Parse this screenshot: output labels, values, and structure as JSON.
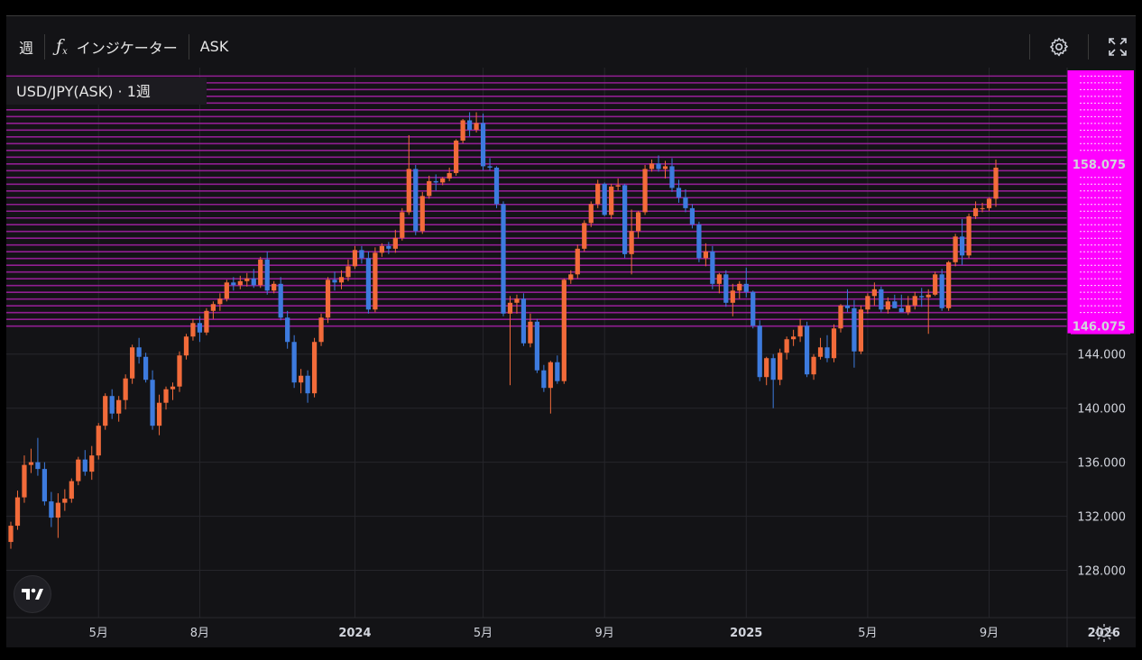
{
  "toolbar": {
    "interval": "週",
    "indicators_label": "インジケーター",
    "price_source": "ASK"
  },
  "legend": {
    "symbol": "USD/JPY(ASK)",
    "interval": "1週"
  },
  "colors": {
    "background": "#131316",
    "up": "#f26b3a",
    "down": "#3d7bde",
    "levels": "#a020a0",
    "level_label_bg": "#ff00ff"
  },
  "price_labels": {
    "level_top": "158.075",
    "level_bottom": "146.075"
  },
  "chart_data": {
    "type": "candlestick",
    "y_ticks": [
      "144.000",
      "140.000",
      "136.000",
      "132.000",
      "128.000"
    ],
    "x_ticks": [
      "5月",
      "8月",
      "2024",
      "5月",
      "9月",
      "2025",
      "5月",
      "9月",
      "2026"
    ],
    "ylim": [
      124.5,
      165.0
    ],
    "levels": {
      "from": 146.075,
      "to": 164.6,
      "step": 0.5,
      "highlighted": [
        158.075,
        146.075
      ]
    },
    "candles": [
      [
        130.1,
        131.6,
        129.6,
        131.3
      ],
      [
        131.3,
        133.9,
        131.0,
        133.4
      ],
      [
        133.4,
        136.5,
        133.0,
        135.8
      ],
      [
        135.8,
        137.0,
        135.2,
        136.0
      ],
      [
        136.0,
        137.8,
        135.0,
        135.5
      ],
      [
        135.5,
        136.0,
        132.8,
        133.1
      ],
      [
        133.1,
        133.8,
        131.2,
        131.9
      ],
      [
        131.9,
        133.7,
        130.4,
        133.0
      ],
      [
        133.0,
        134.0,
        132.4,
        133.3
      ],
      [
        133.3,
        134.8,
        133.0,
        134.6
      ],
      [
        134.6,
        136.4,
        134.3,
        136.2
      ],
      [
        136.2,
        136.9,
        135.0,
        135.3
      ],
      [
        135.3,
        137.2,
        134.7,
        136.5
      ],
      [
        136.5,
        138.9,
        136.2,
        138.7
      ],
      [
        138.7,
        141.1,
        138.4,
        140.9
      ],
      [
        140.9,
        141.4,
        139.2,
        139.6
      ],
      [
        139.6,
        140.9,
        139.0,
        140.6
      ],
      [
        140.6,
        142.5,
        139.9,
        142.2
      ],
      [
        142.2,
        144.7,
        141.8,
        144.5
      ],
      [
        144.5,
        145.2,
        143.3,
        143.8
      ],
      [
        143.8,
        144.1,
        141.9,
        142.1
      ],
      [
        142.1,
        142.8,
        138.4,
        138.7
      ],
      [
        138.7,
        141.0,
        138.0,
        140.4
      ],
      [
        140.4,
        141.6,
        139.9,
        141.4
      ],
      [
        141.4,
        141.9,
        140.6,
        141.6
      ],
      [
        141.6,
        144.2,
        141.2,
        143.9
      ],
      [
        143.9,
        145.5,
        143.6,
        145.3
      ],
      [
        145.3,
        146.6,
        145.0,
        146.3
      ],
      [
        146.3,
        146.8,
        144.9,
        145.6
      ],
      [
        145.6,
        147.4,
        145.4,
        147.2
      ],
      [
        147.2,
        147.9,
        146.6,
        147.7
      ],
      [
        147.7,
        148.5,
        147.2,
        148.1
      ],
      [
        148.1,
        149.5,
        147.9,
        149.3
      ],
      [
        149.3,
        149.7,
        148.7,
        149.1
      ],
      [
        149.1,
        149.8,
        148.8,
        149.4
      ],
      [
        149.4,
        150.0,
        149.0,
        149.6
      ],
      [
        149.6,
        150.3,
        148.9,
        149.1
      ],
      [
        149.1,
        151.2,
        148.9,
        151.0
      ],
      [
        151.0,
        151.6,
        148.4,
        148.7
      ],
      [
        148.7,
        149.4,
        148.5,
        149.2
      ],
      [
        149.2,
        149.7,
        146.5,
        146.7
      ],
      [
        146.7,
        147.2,
        144.4,
        144.9
      ],
      [
        144.9,
        145.4,
        141.5,
        141.9
      ],
      [
        141.9,
        142.9,
        141.1,
        142.4
      ],
      [
        142.4,
        142.8,
        140.4,
        141.1
      ],
      [
        141.1,
        145.2,
        140.8,
        144.9
      ],
      [
        144.9,
        147.0,
        144.6,
        146.7
      ],
      [
        146.7,
        149.7,
        146.3,
        149.5
      ],
      [
        149.5,
        150.1,
        148.7,
        149.3
      ],
      [
        149.3,
        150.2,
        148.8,
        149.7
      ],
      [
        149.7,
        151.0,
        149.4,
        150.5
      ],
      [
        150.5,
        152.0,
        150.3,
        151.7
      ],
      [
        151.7,
        152.0,
        150.7,
        151.1
      ],
      [
        151.1,
        151.6,
        147.0,
        147.3
      ],
      [
        147.3,
        151.9,
        147.1,
        151.5
      ],
      [
        151.5,
        152.2,
        151.2,
        152.0
      ],
      [
        152.0,
        152.3,
        151.4,
        151.8
      ],
      [
        151.8,
        153.2,
        151.5,
        152.6
      ],
      [
        152.6,
        154.8,
        152.4,
        154.5
      ],
      [
        154.5,
        160.2,
        154.3,
        157.7
      ],
      [
        157.7,
        158.0,
        152.8,
        153.1
      ],
      [
        153.1,
        156.0,
        152.9,
        155.7
      ],
      [
        155.7,
        157.2,
        155.5,
        156.8
      ],
      [
        156.8,
        157.3,
        156.1,
        156.7
      ],
      [
        156.7,
        157.1,
        156.5,
        157.0
      ],
      [
        157.0,
        157.8,
        156.8,
        157.4
      ],
      [
        157.4,
        159.9,
        157.2,
        159.8
      ],
      [
        159.8,
        161.4,
        159.6,
        161.3
      ],
      [
        161.3,
        161.9,
        160.1,
        160.6
      ],
      [
        160.6,
        161.9,
        160.4,
        161.1
      ],
      [
        161.1,
        161.8,
        157.6,
        157.9
      ],
      [
        157.9,
        158.5,
        157.6,
        157.8
      ],
      [
        157.8,
        157.9,
        154.8,
        155.1
      ],
      [
        155.1,
        155.3,
        146.8,
        147.0
      ],
      [
        147.0,
        148.3,
        141.7,
        147.8
      ],
      [
        147.8,
        148.4,
        147.0,
        148.1
      ],
      [
        148.1,
        148.5,
        144.6,
        144.8
      ],
      [
        144.8,
        147.0,
        144.5,
        146.4
      ],
      [
        146.4,
        146.6,
        142.6,
        142.8
      ],
      [
        142.8,
        143.2,
        141.2,
        141.5
      ],
      [
        141.5,
        143.5,
        139.6,
        143.4
      ],
      [
        143.4,
        143.9,
        141.8,
        142.0
      ],
      [
        142.0,
        149.6,
        141.8,
        149.5
      ],
      [
        149.5,
        150.2,
        149.2,
        149.9
      ],
      [
        149.9,
        152.1,
        149.6,
        151.8
      ],
      [
        151.8,
        153.9,
        151.6,
        153.7
      ],
      [
        153.7,
        155.3,
        153.4,
        155.1
      ],
      [
        155.1,
        156.9,
        154.8,
        156.6
      ],
      [
        156.6,
        156.7,
        154.2,
        154.3
      ],
      [
        154.3,
        156.6,
        154.0,
        156.4
      ],
      [
        156.4,
        157.0,
        156.1,
        156.5
      ],
      [
        156.5,
        156.6,
        151.1,
        151.4
      ],
      [
        151.4,
        154.7,
        149.9,
        153.1
      ],
      [
        153.1,
        154.6,
        152.6,
        154.5
      ],
      [
        154.5,
        158.0,
        154.3,
        157.7
      ],
      [
        157.7,
        158.4,
        157.5,
        158.1
      ],
      [
        158.1,
        158.7,
        157.5,
        157.7
      ],
      [
        157.7,
        158.3,
        157.0,
        157.9
      ],
      [
        157.9,
        158.5,
        156.0,
        156.3
      ],
      [
        156.3,
        156.9,
        155.2,
        155.6
      ],
      [
        155.6,
        156.2,
        154.5,
        154.8
      ],
      [
        154.8,
        155.1,
        153.3,
        153.6
      ],
      [
        153.6,
        153.8,
        150.8,
        151.1
      ],
      [
        151.1,
        152.2,
        150.5,
        151.6
      ],
      [
        151.6,
        152.0,
        148.8,
        149.2
      ],
      [
        149.2,
        150.0,
        148.5,
        149.9
      ],
      [
        149.9,
        150.2,
        147.5,
        147.8
      ],
      [
        147.8,
        149.2,
        146.8,
        148.7
      ],
      [
        148.7,
        149.4,
        148.1,
        149.2
      ],
      [
        149.2,
        150.4,
        148.2,
        148.6
      ],
      [
        148.6,
        148.7,
        145.9,
        146.1
      ],
      [
        146.1,
        146.5,
        142.0,
        142.3
      ],
      [
        142.3,
        143.8,
        141.7,
        143.7
      ],
      [
        143.7,
        144.0,
        140.0,
        142.1
      ],
      [
        142.1,
        144.4,
        141.7,
        144.1
      ],
      [
        144.1,
        145.3,
        143.6,
        145.1
      ],
      [
        145.1,
        145.8,
        144.6,
        145.3
      ],
      [
        145.3,
        146.6,
        144.9,
        146.1
      ],
      [
        146.1,
        146.4,
        142.3,
        142.5
      ],
      [
        142.5,
        144.0,
        142.1,
        143.8
      ],
      [
        143.8,
        145.2,
        143.6,
        144.5
      ],
      [
        144.5,
        145.4,
        143.4,
        143.7
      ],
      [
        143.7,
        146.2,
        143.4,
        145.9
      ],
      [
        145.9,
        147.7,
        145.6,
        147.6
      ],
      [
        147.6,
        148.8,
        147.1,
        147.4
      ],
      [
        147.4,
        148.0,
        143.0,
        144.2
      ],
      [
        144.2,
        147.6,
        144.0,
        147.3
      ],
      [
        147.3,
        148.5,
        147.0,
        148.3
      ],
      [
        148.3,
        149.3,
        147.6,
        148.8
      ],
      [
        148.8,
        149.0,
        147.1,
        147.3
      ],
      [
        147.3,
        148.2,
        147.0,
        147.9
      ],
      [
        147.9,
        148.4,
        147.4,
        147.4
      ],
      [
        147.4,
        148.4,
        147.1,
        147.1
      ],
      [
        147.1,
        148.3,
        146.9,
        147.6
      ],
      [
        147.6,
        148.6,
        147.3,
        148.3
      ],
      [
        148.3,
        148.9,
        147.5,
        148.2
      ],
      [
        148.2,
        148.8,
        145.5,
        148.4
      ],
      [
        148.4,
        150.1,
        148.3,
        149.9
      ],
      [
        149.9,
        150.3,
        147.2,
        147.4
      ],
      [
        147.4,
        150.9,
        147.2,
        150.8
      ],
      [
        150.8,
        152.9,
        150.5,
        152.7
      ],
      [
        152.7,
        154.0,
        150.6,
        151.3
      ],
      [
        151.3,
        154.4,
        151.1,
        154.2
      ],
      [
        154.2,
        155.3,
        154.0,
        154.8
      ],
      [
        154.8,
        155.2,
        154.5,
        154.8
      ],
      [
        154.8,
        155.6,
        154.6,
        155.5
      ],
      [
        155.5,
        158.4,
        154.9,
        157.8
      ]
    ]
  }
}
